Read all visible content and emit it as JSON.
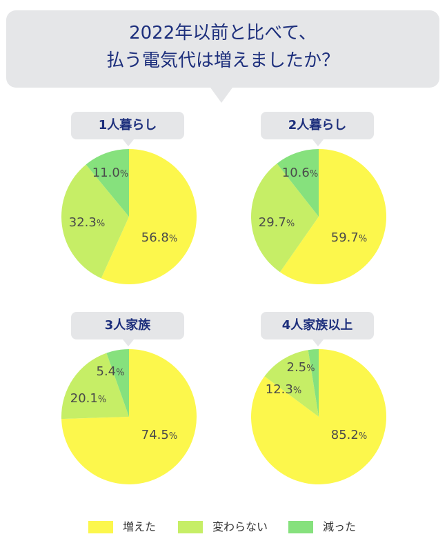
{
  "title": {
    "line1": "2022年以前と比べて、",
    "line2": "払う電気代は増えましたか？"
  },
  "colors": {
    "increased": "#fcf74c",
    "unchanged": "#c6ee66",
    "decreased": "#86e17d"
  },
  "chart_data": [
    {
      "type": "pie",
      "label": "1人暮らし",
      "slices": [
        {
          "name": "増えた",
          "value": 56.8
        },
        {
          "name": "変わらない",
          "value": 32.3
        },
        {
          "name": "減った",
          "value": 11.0
        }
      ]
    },
    {
      "type": "pie",
      "label": "2人暮らし",
      "slices": [
        {
          "name": "増えた",
          "value": 59.7
        },
        {
          "name": "変わらない",
          "value": 29.7
        },
        {
          "name": "減った",
          "value": 10.6
        }
      ]
    },
    {
      "type": "pie",
      "label": "3人家族",
      "slices": [
        {
          "name": "増えた",
          "value": 74.5
        },
        {
          "name": "変わらない",
          "value": 20.1
        },
        {
          "name": "減った",
          "value": 5.4
        }
      ]
    },
    {
      "type": "pie",
      "label": "4人家族以上",
      "slices": [
        {
          "name": "増えた",
          "value": 85.2
        },
        {
          "name": "変わらない",
          "value": 12.3
        },
        {
          "name": "減った",
          "value": 2.5
        }
      ]
    }
  ],
  "legend": {
    "position": "bottom",
    "items": [
      "増えた",
      "変わらない",
      "減った"
    ]
  },
  "unit": "%"
}
